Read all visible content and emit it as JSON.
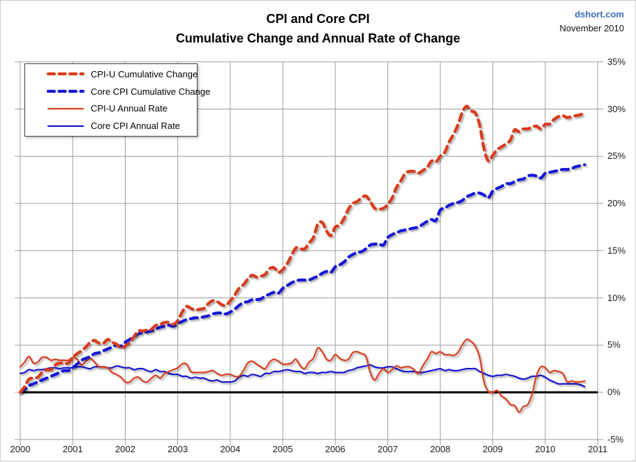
{
  "header": {
    "title_line1": "CPI and Core CPI",
    "title_line2": "Cumulative Change and Annual Rate of Change",
    "source": "dshort.com",
    "date": "November 2010"
  },
  "colors": {
    "cpi_red": "#d93b1a",
    "core_blue": "#1414d8",
    "grid_gray": "#9e9e9e",
    "zero_line": "#000000",
    "source_blue": "#3a6db5"
  },
  "chart_data": {
    "type": "line",
    "title": "CPI and Core CPI Cumulative Change and Annual Rate of Change",
    "frequency": "monthly",
    "x_start": "2000-01",
    "x_end": "2010-10",
    "x_ticks": [
      2000,
      2001,
      2002,
      2003,
      2004,
      2005,
      2006,
      2007,
      2008,
      2009,
      2010,
      2011
    ],
    "y_ticks": [
      35,
      30,
      25,
      20,
      15,
      10,
      5,
      0,
      -5
    ],
    "y_suffix": "%",
    "ylim": [
      -5,
      35
    ],
    "grid": true,
    "zero_line": true,
    "legend_position": "top-left",
    "series": [
      {
        "name": "CPI-U Cumulative Change",
        "color": "#d93b1a",
        "line_style": "dashed",
        "line_width": 4.2,
        "values": [
          0.0,
          0.6,
          1.4,
          1.5,
          1.6,
          2.1,
          2.4,
          2.4,
          2.9,
          3.1,
          3.1,
          3.1,
          3.7,
          4.1,
          4.4,
          4.8,
          5.3,
          5.5,
          5.2,
          5.2,
          5.6,
          5.3,
          5.1,
          4.7,
          4.9,
          5.3,
          5.9,
          6.5,
          6.5,
          6.6,
          6.7,
          7.1,
          7.2,
          7.4,
          7.4,
          7.2,
          7.6,
          8.5,
          9.1,
          8.9,
          8.7,
          8.8,
          8.9,
          9.4,
          9.7,
          9.6,
          9.3,
          9.2,
          9.7,
          10.3,
          11.0,
          11.4,
          12.0,
          12.4,
          12.2,
          12.3,
          12.5,
          13.1,
          13.2,
          12.7,
          13.0,
          13.6,
          14.5,
          15.3,
          15.2,
          15.2,
          15.8,
          16.4,
          17.8,
          18.0,
          17.1,
          16.6,
          17.5,
          17.7,
          18.4,
          19.4,
          20.0,
          20.2,
          20.6,
          20.8,
          20.2,
          19.5,
          19.4,
          19.5,
          19.9,
          20.6,
          21.7,
          22.4,
          23.2,
          23.4,
          23.4,
          23.2,
          23.5,
          23.8,
          24.5,
          24.4,
          25.0,
          25.4,
          26.5,
          27.3,
          28.3,
          29.6,
          30.3,
          29.8,
          29.6,
          28.3,
          25.8,
          24.5,
          25.1,
          25.7,
          26.0,
          26.3,
          26.7,
          27.8,
          27.6,
          27.9,
          27.9,
          28.1,
          28.2,
          27.9,
          28.4,
          28.4,
          28.9,
          29.2,
          29.3,
          29.1,
          29.2,
          29.3,
          29.4,
          29.6
        ]
      },
      {
        "name": "Core CPI Cumulative Change",
        "color": "#1414d8",
        "line_style": "dashed",
        "line_width": 4.2,
        "values": [
          0.0,
          0.3,
          0.7,
          0.9,
          1.1,
          1.3,
          1.5,
          1.7,
          1.9,
          2.1,
          2.3,
          2.3,
          2.6,
          3.0,
          3.4,
          3.6,
          3.8,
          4.1,
          4.2,
          4.4,
          4.6,
          4.8,
          5.0,
          4.9,
          5.3,
          5.6,
          5.9,
          6.2,
          6.3,
          6.4,
          6.5,
          6.7,
          6.9,
          7.0,
          7.1,
          7.0,
          7.3,
          7.5,
          7.7,
          7.8,
          7.9,
          7.9,
          8.0,
          8.1,
          8.3,
          8.4,
          8.4,
          8.3,
          8.5,
          8.8,
          9.2,
          9.5,
          9.6,
          9.8,
          9.8,
          9.9,
          10.2,
          10.4,
          10.6,
          10.5,
          11.0,
          11.3,
          11.6,
          11.8,
          11.9,
          11.9,
          11.9,
          12.1,
          12.3,
          12.6,
          12.8,
          12.7,
          13.3,
          13.5,
          13.8,
          14.3,
          14.6,
          14.8,
          14.9,
          15.2,
          15.6,
          15.7,
          15.7,
          15.6,
          16.4,
          16.7,
          16.9,
          17.1,
          17.2,
          17.3,
          17.4,
          17.5,
          17.8,
          18.1,
          18.3,
          18.2,
          19.3,
          19.5,
          19.8,
          20.0,
          20.1,
          20.3,
          20.7,
          20.9,
          21.1,
          21.1,
          20.9,
          20.6,
          21.3,
          21.6,
          21.8,
          22.1,
          22.1,
          22.3,
          22.5,
          22.6,
          22.9,
          23.0,
          22.9,
          22.7,
          23.2,
          23.3,
          23.4,
          23.5,
          23.6,
          23.6,
          23.7,
          23.9,
          24.0,
          24.1
        ]
      },
      {
        "name": "CPI-U Annual Rate",
        "color": "#da3d1e",
        "line_style": "solid",
        "line_width": 2.2,
        "values": [
          2.7,
          3.2,
          3.8,
          3.1,
          3.2,
          3.7,
          3.7,
          3.4,
          3.5,
          3.4,
          3.4,
          3.4,
          3.7,
          3.5,
          2.9,
          3.3,
          3.6,
          3.2,
          2.7,
          2.7,
          2.6,
          2.1,
          1.9,
          1.6,
          1.1,
          1.1,
          1.5,
          1.6,
          1.2,
          1.1,
          1.5,
          1.8,
          1.5,
          2.0,
          2.2,
          2.4,
          2.6,
          3.0,
          3.0,
          2.2,
          2.1,
          2.1,
          2.1,
          2.2,
          2.3,
          2.0,
          1.8,
          1.9,
          1.9,
          1.7,
          1.7,
          2.3,
          3.1,
          3.3,
          3.0,
          2.7,
          2.5,
          3.2,
          3.5,
          3.3,
          3.0,
          3.0,
          3.1,
          3.5,
          2.8,
          2.5,
          3.2,
          3.6,
          4.7,
          4.3,
          3.5,
          3.4,
          4.0,
          3.6,
          3.4,
          3.5,
          4.2,
          4.3,
          4.1,
          3.8,
          2.1,
          1.3,
          2.0,
          2.5,
          2.1,
          2.4,
          2.8,
          2.6,
          2.7,
          2.7,
          2.4,
          2.0,
          2.8,
          3.5,
          4.3,
          4.1,
          4.3,
          4.0,
          4.0,
          3.9,
          4.2,
          5.0,
          5.6,
          5.4,
          4.9,
          3.7,
          1.1,
          0.1,
          0.0,
          0.2,
          -0.4,
          -0.7,
          -1.3,
          -1.4,
          -2.1,
          -1.5,
          -1.3,
          -0.2,
          1.8,
          2.7,
          2.6,
          2.1,
          2.3,
          2.2,
          2.0,
          1.1,
          1.2,
          1.1,
          1.1,
          1.2
        ]
      },
      {
        "name": "Core CPI Annual Rate",
        "color": "#1515cf",
        "line_style": "solid",
        "line_width": 2.2,
        "values": [
          2.0,
          2.1,
          2.4,
          2.3,
          2.4,
          2.4,
          2.5,
          2.6,
          2.6,
          2.5,
          2.6,
          2.6,
          2.6,
          2.7,
          2.7,
          2.6,
          2.5,
          2.7,
          2.7,
          2.7,
          2.6,
          2.6,
          2.8,
          2.7,
          2.6,
          2.6,
          2.4,
          2.5,
          2.5,
          2.3,
          2.2,
          2.4,
          2.2,
          2.2,
          2.0,
          1.9,
          1.9,
          1.7,
          1.7,
          1.5,
          1.6,
          1.5,
          1.5,
          1.3,
          1.2,
          1.3,
          1.1,
          1.1,
          1.1,
          1.2,
          1.6,
          1.8,
          1.7,
          1.9,
          1.8,
          1.7,
          2.0,
          2.0,
          2.2,
          2.2,
          2.3,
          2.4,
          2.3,
          2.2,
          2.2,
          2.0,
          2.1,
          2.1,
          2.0,
          2.1,
          2.1,
          2.2,
          2.1,
          2.1,
          2.1,
          2.3,
          2.4,
          2.6,
          2.7,
          2.8,
          2.9,
          2.7,
          2.6,
          2.6,
          2.7,
          2.7,
          2.5,
          2.3,
          2.2,
          2.2,
          2.2,
          2.1,
          2.1,
          2.2,
          2.3,
          2.4,
          2.5,
          2.3,
          2.4,
          2.3,
          2.3,
          2.4,
          2.5,
          2.5,
          2.5,
          2.2,
          2.0,
          1.8,
          1.7,
          1.8,
          1.8,
          1.9,
          1.8,
          1.7,
          1.5,
          1.4,
          1.5,
          1.7,
          1.7,
          1.8,
          1.6,
          1.3,
          1.1,
          0.9,
          0.9,
          0.9,
          0.9,
          0.9,
          0.8,
          0.6
        ]
      }
    ]
  }
}
